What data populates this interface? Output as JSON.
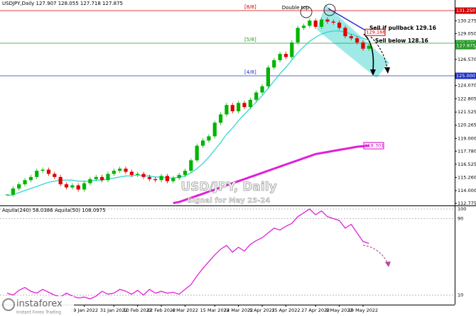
{
  "chart_data": {
    "type": "candlestick",
    "header": "USDJPY,Daily  127.907 128.055 127.718 127.875",
    "title": "USD/JPY, Daily",
    "subtitle": "Signal for May 23-24",
    "annotations": [
      "Double top",
      "Sell if pullback 129.16",
      "Sell below 128.16"
    ],
    "categories": [
      null,
      null,
      null,
      null,
      null,
      null,
      null,
      null,
      null,
      null,
      null,
      null,
      null,
      "19 Jan 2022",
      null,
      null,
      null,
      null,
      "31 Jan 2022",
      null,
      null,
      null,
      "10 Feb 2022",
      null,
      null,
      null,
      "22 Feb 2022",
      null,
      null,
      null,
      "4 Mar 2022",
      null,
      null,
      null,
      null,
      "15 Mar 2022",
      null,
      null,
      null,
      "24 Mar 2022",
      null,
      null,
      null,
      "5 Apr 2022",
      null,
      null,
      null,
      "15 Apr 2022",
      null,
      null,
      null,
      null,
      "27 Apr 2022",
      null,
      null,
      null,
      "9 May 2022",
      null,
      null,
      null,
      "19 May 2022",
      null
    ],
    "values": [
      113.6,
      114.2,
      114.6,
      115.0,
      115.3,
      115.9,
      116.0,
      115.6,
      115.3,
      114.6,
      114.3,
      114.5,
      114.1,
      114.7,
      115.1,
      115.3,
      115.0,
      115.6,
      115.9,
      116.1,
      115.8,
      115.5,
      115.6,
      115.3,
      115.1,
      115.0,
      115.4,
      114.9,
      115.2,
      115.5,
      115.9,
      116.9,
      118.3,
      118.8,
      119.2,
      120.5,
      121.3,
      122.2,
      121.6,
      122.4,
      122.0,
      122.7,
      123.4,
      124.0,
      125.8,
      126.5,
      127.1,
      126.8,
      128.2,
      129.6,
      129.8,
      130.3,
      129.7,
      130.4,
      130.2,
      130.1,
      129.6,
      128.8,
      128.6,
      128.2,
      127.6,
      127.875
    ],
    "up_color": "#00b400",
    "down_color": "#e00000",
    "series": [
      {
        "name": "MA21",
        "color": "#33d6d6",
        "values": [
          113.5,
          113.6,
          113.8,
          114.0,
          114.2,
          114.4,
          114.6,
          114.8,
          114.9,
          115.0,
          115.0,
          115.0,
          114.9,
          114.9,
          114.9,
          115.0,
          115.0,
          115.1,
          115.2,
          115.3,
          115.4,
          115.4,
          115.5,
          115.4,
          115.4,
          115.3,
          115.3,
          115.2,
          115.2,
          115.3,
          115.4,
          115.7,
          116.1,
          116.6,
          117.2,
          117.9,
          118.6,
          119.4,
          120.0,
          120.7,
          121.3,
          121.9,
          122.5,
          123.1,
          123.8,
          124.5,
          125.2,
          125.8,
          126.5,
          127.2,
          127.8,
          128.3,
          128.7,
          129.0,
          129.2,
          129.3,
          129.3,
          129.2,
          129.0,
          128.8,
          128.6,
          128.4
        ]
      },
      {
        "name": "EMA200",
        "color": "#e020d8",
        "values": [
          null,
          null,
          null,
          null,
          null,
          null,
          null,
          null,
          null,
          null,
          null,
          null,
          null,
          null,
          null,
          null,
          null,
          null,
          null,
          null,
          null,
          null,
          null,
          null,
          null,
          null,
          null,
          null,
          112.8,
          112.9,
          113.1,
          113.3,
          113.5,
          113.7,
          113.9,
          114.1,
          114.3,
          114.5,
          114.7,
          114.9,
          115.1,
          115.3,
          115.5,
          115.7,
          115.9,
          116.1,
          116.3,
          116.5,
          116.7,
          116.9,
          117.1,
          117.3,
          117.5,
          117.6,
          117.7,
          117.8,
          117.9,
          118.0,
          118.1,
          118.2,
          118.25,
          118.3
        ]
      }
    ],
    "levels": [
      {
        "name": "[8/8]",
        "value": 131.25,
        "label": "131.250",
        "color": "#d00000"
      },
      {
        "name": "[5/8]",
        "value": 128.125,
        "label": "128.125",
        "color": "#2a9a2a"
      },
      {
        "name": "[4/8]",
        "value": 125,
        "label": "125.000",
        "color": "#2030c0"
      }
    ],
    "price_boxes": [
      {
        "value": 129.166,
        "label": "129.166",
        "color": "#d00000"
      },
      {
        "value": 127.875,
        "label": "127.875",
        "color": "#2a9a2a"
      },
      {
        "value": 118.301,
        "label": "118.301",
        "color": "#d000c8"
      }
    ],
    "ylim": [
      112.57,
      132.27
    ],
    "yticks": [
      130.275,
      {
        "value": 129.05,
        "label": "129.050"
      },
      {
        "value": 126.57,
        "label": "126.570"
      },
      {
        "value": 124.07,
        "label": "124.070"
      },
      122.805,
      121.525,
      120.265,
      {
        "value": 119,
        "label": "119.000"
      },
      {
        "value": 117.78,
        "label": "117.780"
      },
      116.525,
      {
        "value": 115.26,
        "label": "115.260"
      },
      {
        "value": 114,
        "label": "114.000"
      },
      112.775
    ],
    "indicator": {
      "header": "Aquila(240) 58.0386  Aquila(50) 108.0975",
      "color": "#e020d8",
      "values": [
        12,
        10,
        15,
        18,
        14,
        12,
        16,
        13,
        10,
        8,
        12,
        9,
        7,
        8,
        6,
        9,
        14,
        11,
        12,
        16,
        14,
        11,
        15,
        10,
        16,
        12,
        14,
        12,
        13,
        11,
        16,
        21,
        30,
        38,
        45,
        52,
        58,
        62,
        55,
        60,
        56,
        63,
        67,
        70,
        75,
        80,
        78,
        82,
        85,
        92,
        96,
        100,
        94,
        98,
        92,
        90,
        88,
        80,
        84,
        75,
        66,
        64
      ],
      "ylim": [
        0,
        103
      ],
      "yticks": [
        100,
        90,
        10
      ]
    }
  },
  "branding": {
    "logo": "instaforex",
    "tagline": "Instant Forex Trading"
  }
}
